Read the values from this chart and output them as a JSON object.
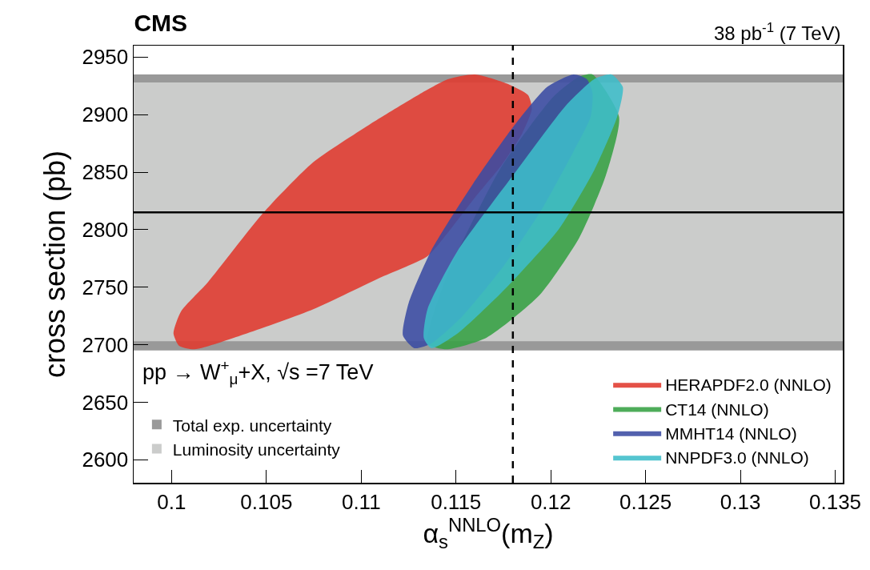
{
  "chart_data": {
    "type": "area",
    "title": "CMS",
    "subtitle": "38 pb$^{-1}$ (7 TeV)",
    "xlabel": "α$_{s}$$^{NNLO}$(m$_{Z}$)",
    "ylabel": "cross section (pb)",
    "annotations": [
      "pp → W$^{+}$$_{μ}$+X, √s =7 TeV"
    ],
    "xlim": [
      0.098,
      0.1354
    ],
    "xticks": [
      0.1,
      0.105,
      0.11,
      0.115,
      0.12,
      0.125,
      0.13,
      0.135
    ],
    "ylim": [
      2580,
      2960
    ],
    "yticks": [
      2600,
      2650,
      2700,
      2750,
      2800,
      2850,
      2900,
      2950
    ],
    "grid": false,
    "legend": "bottom right",
    "bands": [
      {
        "axis": "y",
        "from": 2695,
        "to": 2935,
        "label": "Total exp. uncertainty",
        "color": "#999999"
      },
      {
        "axis": "y",
        "from": 2703,
        "to": 2928,
        "label": "Luminosity uncertainty",
        "color": "#cbcccb"
      }
    ],
    "ref_lines": [
      {
        "axis": "y",
        "value": 2815,
        "color": "#000000",
        "line_style": "solid"
      },
      {
        "axis": "x",
        "value": 0.118,
        "color": "#000000",
        "line_style": "dashed"
      }
    ],
    "series": [
      {
        "name": "HERAPDF2.0 (NNLO)",
        "color": "#e0392e",
        "x": [
          0.116,
          0.1177,
          0.1188,
          0.119,
          0.1185,
          0.1174,
          0.116,
          0.1146,
          0.1135,
          0.1111,
          0.1075,
          0.104,
          0.1012,
          0.1004,
          0.1001,
          0.1005,
          0.1019,
          0.1048,
          0.1075,
          0.1104,
          0.1132,
          0.1146,
          0.116
        ],
        "values": [
          2935,
          2927,
          2917,
          2905,
          2884,
          2856,
          2828,
          2798,
          2777,
          2759,
          2731,
          2710,
          2696,
          2699,
          2710,
          2729,
          2754,
          2814,
          2859,
          2891,
          2919,
          2931,
          2935
        ]
      },
      {
        "name": "CT14 (NNLO)",
        "color": "#36a043",
        "x": [
          0.1222,
          0.1236,
          0.1229,
          0.1215,
          0.1194,
          0.1166,
          0.1145,
          0.1135,
          0.1145,
          0.1173,
          0.1201,
          0.1215,
          0.1222
        ],
        "values": [
          2935,
          2898,
          2847,
          2793,
          2743,
          2706,
          2696,
          2701,
          2759,
          2852,
          2915,
          2933,
          2935
        ]
      },
      {
        "name": "MMHT14 (NNLO)",
        "color": "#3a4ba3",
        "x": [
          0.1212,
          0.1219,
          0.1222,
          0.1221,
          0.1212,
          0.1195,
          0.1175,
          0.1153,
          0.1137,
          0.1128,
          0.1122,
          0.1125,
          0.1137,
          0.1159,
          0.118,
          0.1198,
          0.1212
        ],
        "values": [
          2935,
          2931,
          2919,
          2898,
          2868,
          2817,
          2768,
          2724,
          2701,
          2697,
          2708,
          2736,
          2782,
          2840,
          2889,
          2924,
          2935
        ]
      },
      {
        "name": "NNPDF3.0 (NNLO)",
        "color": "#3dbdca",
        "x": [
          0.1232,
          0.1238,
          0.1235,
          0.1223,
          0.1204,
          0.1175,
          0.1151,
          0.1137,
          0.1133,
          0.1135,
          0.1151,
          0.118,
          0.1208,
          0.1223,
          0.1232
        ],
        "values": [
          2935,
          2924,
          2898,
          2852,
          2800,
          2747,
          2710,
          2697,
          2706,
          2731,
          2782,
          2847,
          2908,
          2931,
          2935
        ]
      }
    ]
  }
}
